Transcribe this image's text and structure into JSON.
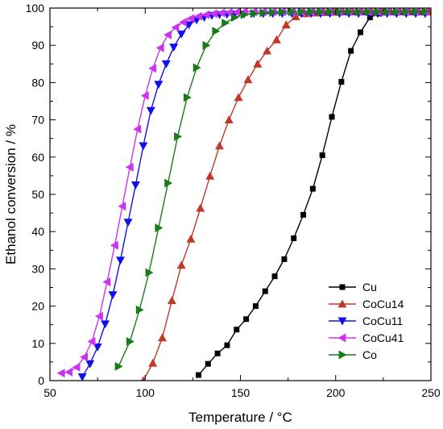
{
  "chart_data": {
    "type": "line",
    "title": "",
    "xlabel": "Temperature / °C",
    "ylabel": "Ethanol conversion / %",
    "xlim": [
      50,
      250
    ],
    "ylim": [
      0,
      100
    ],
    "xticks": [
      50,
      100,
      150,
      200,
      250
    ],
    "yticks": [
      0,
      10,
      20,
      30,
      40,
      50,
      60,
      70,
      80,
      90,
      100
    ],
    "grid": false,
    "legend_position": "bottom-right",
    "series": [
      {
        "name": "Cu",
        "color": "#000000",
        "marker": "square",
        "x": [
          128,
          133,
          138,
          143,
          148,
          153,
          158,
          163,
          168,
          173,
          178,
          183,
          188,
          193,
          198,
          203,
          208,
          213,
          218,
          223,
          228,
          233,
          238,
          243,
          248
        ],
        "y": [
          1.5,
          4.5,
          7.3,
          9.5,
          13.7,
          16.5,
          20.0,
          24.0,
          28.0,
          32.6,
          38.2,
          44.5,
          51.5,
          60.5,
          70.8,
          80.2,
          88.5,
          93.5,
          97.5,
          98.5,
          98.8,
          98.9,
          99.0,
          99.0,
          99.0
        ]
      },
      {
        "name": "CoCu14",
        "color": "#c0392b",
        "marker": "triangle-up",
        "x": [
          99,
          104,
          109,
          114,
          119,
          124,
          129,
          134,
          139,
          144,
          149,
          154,
          159,
          164,
          169,
          174,
          179,
          184,
          189,
          194,
          199,
          204,
          209,
          214,
          219,
          224,
          229,
          234,
          239,
          244,
          249
        ],
        "y": [
          0,
          4.7,
          11.5,
          21.5,
          31.0,
          38.0,
          46.3,
          54.9,
          63.0,
          70.0,
          76.0,
          80.8,
          85.0,
          88.5,
          91.5,
          95.5,
          97.7,
          98.5,
          98.7,
          98.8,
          98.9,
          99.0,
          99.0,
          99.0,
          99.0,
          99.0,
          99.0,
          99.0,
          99.0,
          99.0,
          99.0
        ]
      },
      {
        "name": "CoCu11",
        "color": "#1010ee",
        "marker": "triangle-down",
        "x": [
          67,
          71,
          75,
          79,
          83,
          87,
          91,
          95,
          99,
          103,
          107,
          111,
          115,
          119,
          123,
          127,
          131,
          135,
          139,
          143,
          147,
          152,
          157,
          162,
          167,
          172,
          177,
          182,
          187,
          192,
          197,
          202,
          207,
          212,
          217,
          222,
          227,
          232,
          237,
          242,
          247
        ],
        "y": [
          1.0,
          4.5,
          9.0,
          15.2,
          23.0,
          32.3,
          42.5,
          52.5,
          63.0,
          72.5,
          79.5,
          85.0,
          89.5,
          93.0,
          95.5,
          96.8,
          97.5,
          98.0,
          98.2,
          98.3,
          98.4,
          98.4,
          98.5,
          98.5,
          98.5,
          98.5,
          98.5,
          98.5,
          98.5,
          98.5,
          98.5,
          98.5,
          98.5,
          98.5,
          98.5,
          98.5,
          98.5,
          98.5,
          98.5,
          98.5,
          98.5
        ]
      },
      {
        "name": "CoCu41",
        "color": "#cc33ee",
        "marker": "triangle-left",
        "x": [
          56,
          60,
          64,
          68,
          72,
          76,
          80,
          84,
          88,
          92,
          96,
          100,
          104,
          108,
          112,
          116,
          120,
          124,
          128,
          132,
          136,
          140,
          144,
          148,
          152,
          157,
          162,
          167,
          172,
          177,
          182,
          187,
          192,
          197,
          202,
          207,
          212,
          217,
          222,
          227,
          232,
          237,
          242,
          247
        ],
        "y": [
          2.0,
          2.3,
          3.6,
          6.3,
          10.5,
          17.3,
          26.5,
          36.3,
          46.8,
          57.3,
          67.5,
          76.5,
          83.8,
          89.3,
          92.8,
          94.8,
          96.2,
          97.2,
          97.8,
          98.2,
          98.5,
          98.7,
          98.8,
          98.9,
          99.0,
          99.0,
          99.0,
          99.0,
          99.0,
          99.0,
          99.0,
          99.0,
          99.0,
          99.0,
          99.0,
          99.0,
          99.0,
          99.0,
          99.0,
          99.0,
          99.0,
          99.0,
          99.0,
          99.0
        ]
      },
      {
        "name": "Co",
        "color": "#1a7a1a",
        "marker": "triangle-right",
        "x": [
          86,
          92,
          97,
          102,
          107,
          112,
          117,
          122,
          127,
          132,
          137,
          142,
          147,
          152,
          157,
          162,
          167,
          172,
          177,
          182,
          187,
          192,
          197,
          202,
          207,
          212,
          217,
          222,
          227,
          232,
          237,
          242,
          247
        ],
        "y": [
          3.8,
          10.5,
          19.0,
          29.0,
          41.0,
          53.0,
          65.5,
          76.0,
          84.0,
          90.0,
          93.8,
          96.0,
          97.5,
          98.2,
          98.5,
          98.7,
          98.8,
          98.9,
          99.0,
          99.0,
          99.0,
          99.0,
          99.0,
          99.0,
          99.0,
          99.0,
          99.0,
          99.0,
          99.0,
          99.0,
          99.0,
          99.0,
          99.0
        ]
      }
    ]
  }
}
